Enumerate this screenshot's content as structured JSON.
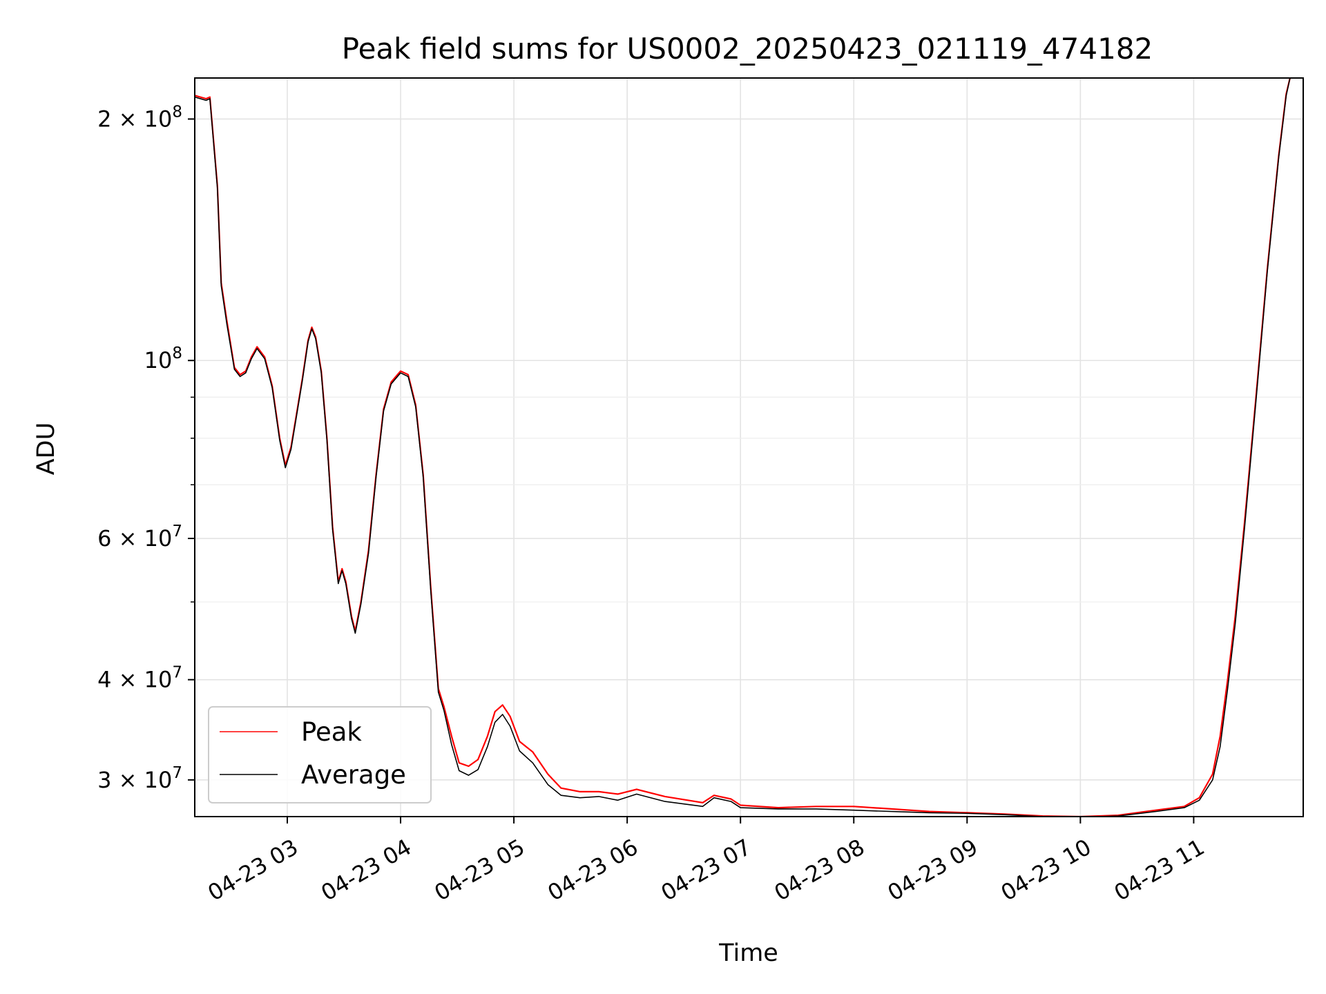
{
  "chart_data": {
    "type": "line",
    "title": "Peak field sums for US0002_20250423_021119_474182",
    "xlabel": "Time",
    "ylabel": "ADU",
    "yscale": "log",
    "ylim": [
      27000000,
      225000000
    ],
    "xlim": [
      "2025-04-23 02:11",
      "2025-04-23 11:58"
    ],
    "grid": true,
    "legend_position": "lower-left",
    "x_ticks": [
      {
        "x": "2025-04-23 03:00",
        "label": "04-23 03"
      },
      {
        "x": "2025-04-23 04:00",
        "label": "04-23 04"
      },
      {
        "x": "2025-04-23 05:00",
        "label": "04-23 05"
      },
      {
        "x": "2025-04-23 06:00",
        "label": "04-23 06"
      },
      {
        "x": "2025-04-23 07:00",
        "label": "04-23 07"
      },
      {
        "x": "2025-04-23 08:00",
        "label": "04-23 08"
      },
      {
        "x": "2025-04-23 09:00",
        "label": "04-23 09"
      },
      {
        "x": "2025-04-23 10:00",
        "label": "04-23 10"
      },
      {
        "x": "2025-04-23 11:00",
        "label": "04-23 11"
      }
    ],
    "y_ticks": [
      {
        "y": 30000000,
        "base": "3 × 10",
        "exp": "7"
      },
      {
        "y": 40000000,
        "base": "4 × 10",
        "exp": "7"
      },
      {
        "y": 60000000,
        "base": "6 × 10",
        "exp": "7"
      },
      {
        "y": 100000000,
        "base": "10",
        "exp": "8"
      },
      {
        "y": 200000000,
        "base": "2 × 10",
        "exp": "8"
      }
    ],
    "y_minor_ticks": [
      50000000,
      70000000,
      80000000,
      90000000
    ],
    "series": [
      {
        "name": "Peak",
        "color": "#ff0000",
        "points": [
          [
            "2025-04-23 02:11",
            214000000
          ],
          [
            "2025-04-23 02:17",
            212000000
          ],
          [
            "2025-04-23 02:19",
            213000000
          ],
          [
            "2025-04-23 02:23",
            165000000
          ],
          [
            "2025-04-23 02:25",
            125000000
          ],
          [
            "2025-04-23 02:28",
            112000000
          ],
          [
            "2025-04-23 02:32",
            98000000
          ],
          [
            "2025-04-23 02:35",
            96000000
          ],
          [
            "2025-04-23 02:38",
            97000000
          ],
          [
            "2025-04-23 02:41",
            101000000
          ],
          [
            "2025-04-23 02:44",
            104000000
          ],
          [
            "2025-04-23 02:48",
            101000000
          ],
          [
            "2025-04-23 02:52",
            93000000
          ],
          [
            "2025-04-23 02:56",
            80000000
          ],
          [
            "2025-04-23 02:59",
            74000000
          ],
          [
            "2025-04-23 03:02",
            78000000
          ],
          [
            "2025-04-23 03:05",
            86000000
          ],
          [
            "2025-04-23 03:08",
            95000000
          ],
          [
            "2025-04-23 03:11",
            106000000
          ],
          [
            "2025-04-23 03:13",
            110000000
          ],
          [
            "2025-04-23 03:15",
            107000000
          ],
          [
            "2025-04-23 03:18",
            97000000
          ],
          [
            "2025-04-23 03:21",
            80000000
          ],
          [
            "2025-04-23 03:24",
            62000000
          ],
          [
            "2025-04-23 03:27",
            53000000
          ],
          [
            "2025-04-23 03:29",
            55000000
          ],
          [
            "2025-04-23 03:31",
            53000000
          ],
          [
            "2025-04-23 03:34",
            48000000
          ],
          [
            "2025-04-23 03:36",
            46000000
          ],
          [
            "2025-04-23 03:39",
            50000000
          ],
          [
            "2025-04-23 03:43",
            58000000
          ],
          [
            "2025-04-23 03:47",
            72000000
          ],
          [
            "2025-04-23 03:51",
            87000000
          ],
          [
            "2025-04-23 03:55",
            94000000
          ],
          [
            "2025-04-23 04:00",
            97000000
          ],
          [
            "2025-04-23 04:04",
            96000000
          ],
          [
            "2025-04-23 04:08",
            88000000
          ],
          [
            "2025-04-23 04:12",
            72000000
          ],
          [
            "2025-04-23 04:16",
            52000000
          ],
          [
            "2025-04-23 04:20",
            39000000
          ],
          [
            "2025-04-23 04:23",
            37000000
          ],
          [
            "2025-04-23 04:27",
            34000000
          ],
          [
            "2025-04-23 04:31",
            31500000
          ],
          [
            "2025-04-23 04:36",
            31200000
          ],
          [
            "2025-04-23 04:41",
            31800000
          ],
          [
            "2025-04-23 04:46",
            34000000
          ],
          [
            "2025-04-23 04:50",
            36500000
          ],
          [
            "2025-04-23 04:54",
            37200000
          ],
          [
            "2025-04-23 04:58",
            36000000
          ],
          [
            "2025-04-23 05:03",
            33500000
          ],
          [
            "2025-04-23 05:10",
            32500000
          ],
          [
            "2025-04-23 05:18",
            30500000
          ],
          [
            "2025-04-23 05:25",
            29300000
          ],
          [
            "2025-04-23 05:35",
            29000000
          ],
          [
            "2025-04-23 05:45",
            29000000
          ],
          [
            "2025-04-23 05:55",
            28800000
          ],
          [
            "2025-04-23 06:05",
            29200000
          ],
          [
            "2025-04-23 06:20",
            28600000
          ],
          [
            "2025-04-23 06:40",
            28100000
          ],
          [
            "2025-04-23 06:46",
            28700000
          ],
          [
            "2025-04-23 06:55",
            28400000
          ],
          [
            "2025-04-23 07:00",
            27900000
          ],
          [
            "2025-04-23 07:20",
            27700000
          ],
          [
            "2025-04-23 07:40",
            27800000
          ],
          [
            "2025-04-23 08:00",
            27800000
          ],
          [
            "2025-04-23 08:20",
            27600000
          ],
          [
            "2025-04-23 08:40",
            27400000
          ],
          [
            "2025-04-23 09:00",
            27300000
          ],
          [
            "2025-04-23 09:20",
            27200000
          ],
          [
            "2025-04-23 09:40",
            27050000
          ],
          [
            "2025-04-23 10:00",
            27000000
          ],
          [
            "2025-04-23 10:20",
            27100000
          ],
          [
            "2025-04-23 10:40",
            27500000
          ],
          [
            "2025-04-23 10:55",
            27800000
          ],
          [
            "2025-04-23 11:03",
            28500000
          ],
          [
            "2025-04-23 11:10",
            30500000
          ],
          [
            "2025-04-23 11:14",
            34000000
          ],
          [
            "2025-04-23 11:18",
            40000000
          ],
          [
            "2025-04-23 11:22",
            48000000
          ],
          [
            "2025-04-23 11:27",
            63000000
          ],
          [
            "2025-04-23 11:33",
            90000000
          ],
          [
            "2025-04-23 11:39",
            130000000
          ],
          [
            "2025-04-23 11:45",
            180000000
          ],
          [
            "2025-04-23 11:49",
            215000000
          ],
          [
            "2025-04-23 11:51",
            225000000
          ]
        ]
      },
      {
        "name": "Average",
        "color": "#000000",
        "points": [
          [
            "2025-04-23 02:11",
            213000000
          ],
          [
            "2025-04-23 02:17",
            211000000
          ],
          [
            "2025-04-23 02:19",
            212000000
          ],
          [
            "2025-04-23 02:23",
            164000000
          ],
          [
            "2025-04-23 02:25",
            124000000
          ],
          [
            "2025-04-23 02:28",
            111000000
          ],
          [
            "2025-04-23 02:32",
            97500000
          ],
          [
            "2025-04-23 02:35",
            95500000
          ],
          [
            "2025-04-23 02:38",
            96500000
          ],
          [
            "2025-04-23 02:41",
            100500000
          ],
          [
            "2025-04-23 02:44",
            103500000
          ],
          [
            "2025-04-23 02:48",
            100500000
          ],
          [
            "2025-04-23 02:52",
            92500000
          ],
          [
            "2025-04-23 02:56",
            79500000
          ],
          [
            "2025-04-23 02:59",
            73500000
          ],
          [
            "2025-04-23 03:02",
            77500000
          ],
          [
            "2025-04-23 03:05",
            85500000
          ],
          [
            "2025-04-23 03:08",
            94500000
          ],
          [
            "2025-04-23 03:11",
            105500000
          ],
          [
            "2025-04-23 03:13",
            109500000
          ],
          [
            "2025-04-23 03:15",
            106500000
          ],
          [
            "2025-04-23 03:18",
            96500000
          ],
          [
            "2025-04-23 03:21",
            79500000
          ],
          [
            "2025-04-23 03:24",
            61500000
          ],
          [
            "2025-04-23 03:27",
            52700000
          ],
          [
            "2025-04-23 03:29",
            54700000
          ],
          [
            "2025-04-23 03:31",
            52700000
          ],
          [
            "2025-04-23 03:34",
            47700000
          ],
          [
            "2025-04-23 03:36",
            45700000
          ],
          [
            "2025-04-23 03:39",
            49700000
          ],
          [
            "2025-04-23 03:43",
            57500000
          ],
          [
            "2025-04-23 03:47",
            71500000
          ],
          [
            "2025-04-23 03:51",
            86500000
          ],
          [
            "2025-04-23 03:55",
            93500000
          ],
          [
            "2025-04-23 04:00",
            96500000
          ],
          [
            "2025-04-23 04:04",
            95500000
          ],
          [
            "2025-04-23 04:08",
            87500000
          ],
          [
            "2025-04-23 04:12",
            71500000
          ],
          [
            "2025-04-23 04:16",
            51500000
          ],
          [
            "2025-04-23 04:20",
            38600000
          ],
          [
            "2025-04-23 04:23",
            36600000
          ],
          [
            "2025-04-23 04:27",
            33200000
          ],
          [
            "2025-04-23 04:31",
            30800000
          ],
          [
            "2025-04-23 04:36",
            30400000
          ],
          [
            "2025-04-23 04:41",
            30900000
          ],
          [
            "2025-04-23 04:46",
            33000000
          ],
          [
            "2025-04-23 04:50",
            35400000
          ],
          [
            "2025-04-23 04:54",
            36200000
          ],
          [
            "2025-04-23 04:58",
            35000000
          ],
          [
            "2025-04-23 05:03",
            32600000
          ],
          [
            "2025-04-23 05:10",
            31500000
          ],
          [
            "2025-04-23 05:18",
            29600000
          ],
          [
            "2025-04-23 05:25",
            28700000
          ],
          [
            "2025-04-23 05:35",
            28500000
          ],
          [
            "2025-04-23 05:45",
            28600000
          ],
          [
            "2025-04-23 05:55",
            28300000
          ],
          [
            "2025-04-23 06:05",
            28800000
          ],
          [
            "2025-04-23 06:20",
            28200000
          ],
          [
            "2025-04-23 06:40",
            27800000
          ],
          [
            "2025-04-23 06:46",
            28500000
          ],
          [
            "2025-04-23 06:55",
            28200000
          ],
          [
            "2025-04-23 07:00",
            27700000
          ],
          [
            "2025-04-23 07:20",
            27600000
          ],
          [
            "2025-04-23 07:40",
            27600000
          ],
          [
            "2025-04-23 08:00",
            27500000
          ],
          [
            "2025-04-23 08:20",
            27400000
          ],
          [
            "2025-04-23 08:40",
            27300000
          ],
          [
            "2025-04-23 09:00",
            27250000
          ],
          [
            "2025-04-23 09:20",
            27150000
          ],
          [
            "2025-04-23 09:40",
            27000000
          ],
          [
            "2025-04-23 10:00",
            26950000
          ],
          [
            "2025-04-23 10:20",
            27050000
          ],
          [
            "2025-04-23 10:40",
            27400000
          ],
          [
            "2025-04-23 10:55",
            27700000
          ],
          [
            "2025-04-23 11:03",
            28300000
          ],
          [
            "2025-04-23 11:10",
            30000000
          ],
          [
            "2025-04-23 11:14",
            33000000
          ],
          [
            "2025-04-23 11:18",
            39000000
          ],
          [
            "2025-04-23 11:22",
            47000000
          ],
          [
            "2025-04-23 11:27",
            62000000
          ],
          [
            "2025-04-23 11:33",
            89000000
          ],
          [
            "2025-04-23 11:39",
            129000000
          ],
          [
            "2025-04-23 11:45",
            179000000
          ],
          [
            "2025-04-23 11:49",
            214000000
          ],
          [
            "2025-04-23 11:51",
            225000000
          ]
        ]
      }
    ]
  }
}
